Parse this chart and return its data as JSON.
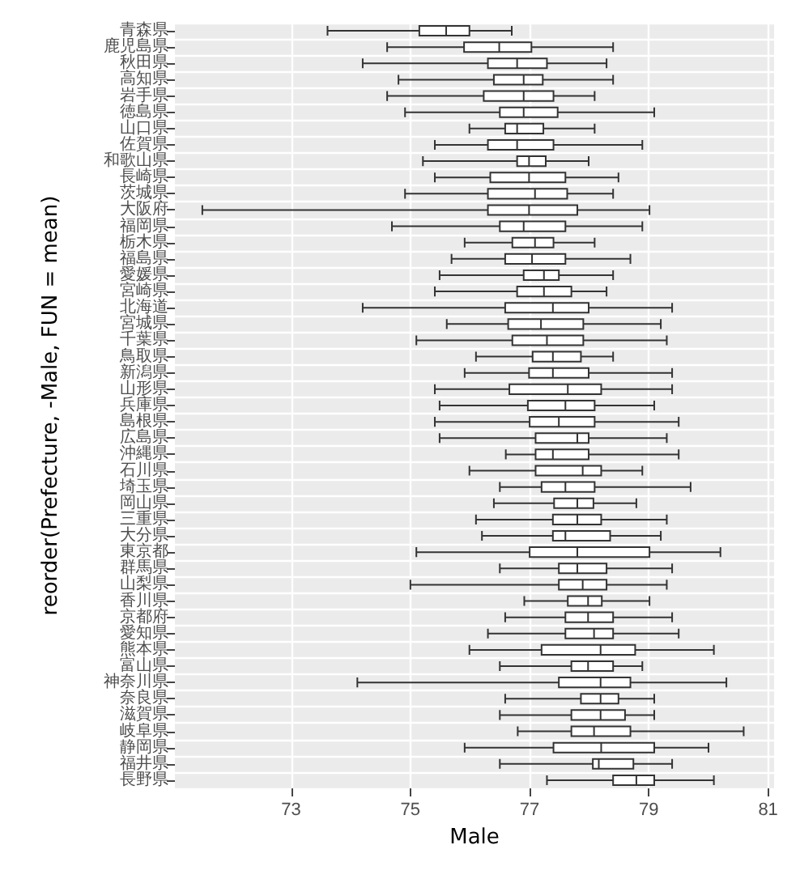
{
  "chart_data": {
    "type": "box",
    "orientation": "horizontal",
    "xlabel": "Male",
    "ylabel": "reorder(Prefecture, -Male, FUN = mean)",
    "color": "#333333",
    "grid": true,
    "xlim": [
      71.05,
      81.1
    ],
    "xticks": [
      73,
      75,
      77,
      79,
      81
    ],
    "categories": [
      "青森県",
      "鹿児島県",
      "秋田県",
      "高知県",
      "岩手県",
      "徳島県",
      "山口県",
      "佐賀県",
      "和歌山県",
      "長崎県",
      "茨城県",
      "大阪府",
      "福岡県",
      "栃木県",
      "福島県",
      "愛媛県",
      "宮崎県",
      "北海道",
      "宮城県",
      "千葉県",
      "鳥取県",
      "新潟県",
      "山形県",
      "兵庫県",
      "島根県",
      "広島県",
      "沖縄県",
      "石川県",
      "埼玉県",
      "岡山県",
      "三重県",
      "大分県",
      "東京都",
      "群馬県",
      "山梨県",
      "香川県",
      "京都府",
      "愛知県",
      "熊本県",
      "富山県",
      "神奈川県",
      "奈良県",
      "滋賀県",
      "岐阜県",
      "静岡県",
      "福井県",
      "長野県"
    ],
    "boxes": [
      {
        "low": 73.61,
        "q1": 75.15,
        "median": 75.6,
        "q3": 75.99,
        "high": 76.7
      },
      {
        "low": 74.61,
        "q1": 75.9,
        "median": 76.49,
        "q3": 77.03,
        "high": 78.4
      },
      {
        "low": 74.2,
        "q1": 76.3,
        "median": 76.79,
        "q3": 77.29,
        "high": 78.29
      },
      {
        "low": 74.8,
        "q1": 76.4,
        "median": 76.9,
        "q3": 77.22,
        "high": 78.4
      },
      {
        "low": 74.61,
        "q1": 76.23,
        "median": 76.9,
        "q3": 77.4,
        "high": 78.09
      },
      {
        "low": 74.91,
        "q1": 76.5,
        "median": 76.9,
        "q3": 77.47,
        "high": 79.09
      },
      {
        "low": 75.99,
        "q1": 76.59,
        "median": 76.79,
        "q3": 77.23,
        "high": 78.09
      },
      {
        "low": 75.41,
        "q1": 76.3,
        "median": 76.79,
        "q3": 77.4,
        "high": 78.89
      },
      {
        "low": 75.21,
        "q1": 76.79,
        "median": 76.99,
        "q3": 77.27,
        "high": 77.99
      },
      {
        "low": 75.41,
        "q1": 76.34,
        "median": 76.99,
        "q3": 77.6,
        "high": 78.49
      },
      {
        "low": 74.91,
        "q1": 76.3,
        "median": 77.09,
        "q3": 77.63,
        "high": 78.4
      },
      {
        "low": 71.51,
        "q1": 76.3,
        "median": 76.99,
        "q3": 77.8,
        "high": 79.01
      },
      {
        "low": 74.69,
        "q1": 76.5,
        "median": 76.9,
        "q3": 77.6,
        "high": 78.89
      },
      {
        "low": 75.91,
        "q1": 76.71,
        "median": 77.09,
        "q3": 77.4,
        "high": 78.09
      },
      {
        "low": 75.69,
        "q1": 76.59,
        "median": 77.04,
        "q3": 77.6,
        "high": 78.69
      },
      {
        "low": 75.49,
        "q1": 76.9,
        "median": 77.24,
        "q3": 77.49,
        "high": 78.4
      },
      {
        "low": 75.41,
        "q1": 76.79,
        "median": 77.24,
        "q3": 77.7,
        "high": 78.29
      },
      {
        "low": 74.2,
        "q1": 76.59,
        "median": 77.39,
        "q3": 77.99,
        "high": 79.39
      },
      {
        "low": 75.61,
        "q1": 76.64,
        "median": 77.19,
        "q3": 77.9,
        "high": 79.2
      },
      {
        "low": 75.1,
        "q1": 76.71,
        "median": 77.29,
        "q3": 77.9,
        "high": 79.3
      },
      {
        "low": 76.1,
        "q1": 77.05,
        "median": 77.39,
        "q3": 77.86,
        "high": 78.4
      },
      {
        "low": 75.91,
        "q1": 76.99,
        "median": 77.39,
        "q3": 77.99,
        "high": 79.39
      },
      {
        "low": 75.41,
        "q1": 76.66,
        "median": 77.64,
        "q3": 78.2,
        "high": 79.39
      },
      {
        "low": 75.49,
        "q1": 76.97,
        "median": 77.6,
        "q3": 78.09,
        "high": 79.09
      },
      {
        "low": 75.41,
        "q1": 77.0,
        "median": 77.49,
        "q3": 78.09,
        "high": 79.5
      },
      {
        "low": 75.49,
        "q1": 77.1,
        "median": 77.8,
        "q3": 77.99,
        "high": 79.3
      },
      {
        "low": 76.6,
        "q1": 77.1,
        "median": 77.39,
        "q3": 77.99,
        "high": 79.5
      },
      {
        "low": 75.99,
        "q1": 77.1,
        "median": 77.89,
        "q3": 78.2,
        "high": 78.89
      },
      {
        "low": 76.5,
        "q1": 77.2,
        "median": 77.6,
        "q3": 78.09,
        "high": 79.7
      },
      {
        "low": 76.4,
        "q1": 77.41,
        "median": 77.8,
        "q3": 78.07,
        "high": 78.79
      },
      {
        "low": 76.1,
        "q1": 77.39,
        "median": 77.8,
        "q3": 78.2,
        "high": 79.3
      },
      {
        "low": 76.2,
        "q1": 77.39,
        "median": 77.6,
        "q3": 78.35,
        "high": 79.2
      },
      {
        "low": 75.1,
        "q1": 77.0,
        "median": 77.8,
        "q3": 79.01,
        "high": 80.2
      },
      {
        "low": 76.5,
        "q1": 77.49,
        "median": 77.8,
        "q3": 78.29,
        "high": 79.39
      },
      {
        "low": 75.0,
        "q1": 77.49,
        "median": 77.89,
        "q3": 78.29,
        "high": 79.3
      },
      {
        "low": 76.91,
        "q1": 77.64,
        "median": 77.98,
        "q3": 78.21,
        "high": 79.01
      },
      {
        "low": 76.59,
        "q1": 77.6,
        "median": 77.98,
        "q3": 78.4,
        "high": 79.39
      },
      {
        "low": 76.3,
        "q1": 77.6,
        "median": 78.08,
        "q3": 78.4,
        "high": 79.5
      },
      {
        "low": 75.99,
        "q1": 77.2,
        "median": 78.19,
        "q3": 78.77,
        "high": 80.09
      },
      {
        "low": 76.5,
        "q1": 77.7,
        "median": 77.98,
        "q3": 78.4,
        "high": 78.89
      },
      {
        "low": 74.11,
        "q1": 77.49,
        "median": 78.19,
        "q3": 78.69,
        "high": 80.3
      },
      {
        "low": 76.59,
        "q1": 77.86,
        "median": 78.19,
        "q3": 78.49,
        "high": 79.09
      },
      {
        "low": 76.5,
        "q1": 77.7,
        "median": 78.19,
        "q3": 78.6,
        "high": 79.09
      },
      {
        "low": 76.8,
        "q1": 77.7,
        "median": 78.08,
        "q3": 78.69,
        "high": 80.59
      },
      {
        "low": 75.91,
        "q1": 77.4,
        "median": 78.2,
        "q3": 79.09,
        "high": 80.0
      },
      {
        "low": 76.5,
        "q1": 78.06,
        "median": 78.16,
        "q3": 78.74,
        "high": 79.39
      },
      {
        "low": 77.29,
        "q1": 78.4,
        "median": 78.79,
        "q3": 79.09,
        "high": 80.09
      }
    ]
  }
}
